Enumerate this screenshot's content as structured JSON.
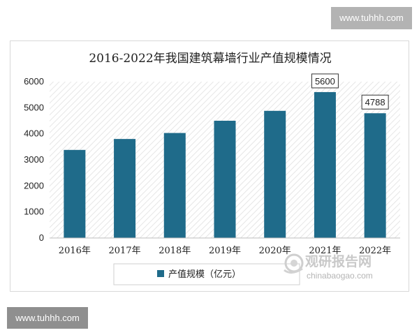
{
  "watermark_top": "www.tuhhh.com",
  "watermark_bottom": "www.tuhhh.com",
  "brand": {
    "name_cn": "观研报告网",
    "url": "chinabaogao.com"
  },
  "chart_data": {
    "type": "bar",
    "title": "2016-2022年我国建筑幕墙行业产值规模情况",
    "categories": [
      "2016年",
      "2017年",
      "2018年",
      "2019年",
      "2020年",
      "2021年",
      "2022年"
    ],
    "series": [
      {
        "name": "产值规模（亿元）",
        "values": [
          3380,
          3800,
          4030,
          4500,
          4880,
          5600,
          4788
        ],
        "color": "#1f6b8a"
      }
    ],
    "data_labels": [
      {
        "index": 5,
        "text": "5600"
      },
      {
        "index": 6,
        "text": "4788"
      }
    ],
    "y_ticks": [
      "0",
      "1000",
      "2000",
      "3000",
      "4000",
      "5000",
      "6000"
    ],
    "ylim": [
      0,
      6000
    ],
    "grid": false,
    "plot_background": "hatched",
    "legend_position": "bottom"
  }
}
